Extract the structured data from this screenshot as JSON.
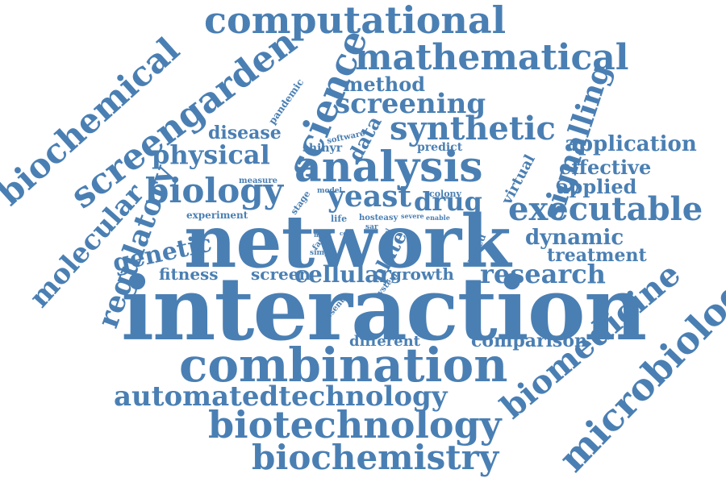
{
  "color": "#4a7fb3",
  "words": {
    "computational": "computational",
    "mathematical": "mathematical",
    "biochemical": "biochemical",
    "screengarden": "screengarden",
    "science": "science",
    "method": "method",
    "screening": "screening",
    "pandemic": "pandemic",
    "synthetic": "synthetic",
    "signalling": "signalling",
    "disease": "disease",
    "data": "data",
    "software": "software",
    "shinyr": "shinyr",
    "predict": "predict",
    "application": "application",
    "physical": "physical",
    "analysis": "analysis",
    "virtual": "virtual",
    "effective": "effective",
    "molecular": "molecular",
    "regulatory": "regulatory",
    "biology": "biology",
    "measure": "measure",
    "model": "model",
    "stage": "stage",
    "yeast": "yeast",
    "drug": "drug",
    "colony": "colony",
    "applied": "applied",
    "executable": "executable",
    "experiment": "experiment",
    "life": "life",
    "host": "host",
    "easy": "easy",
    "severe": "severe",
    "enable": "enable",
    "network": "network",
    "most": "most",
    "code": "code",
    "sar": "sar",
    "tool": "tool",
    "dynamic": "dynamic",
    "genetic": "genetic",
    "fast": "fast",
    "simple": "simple",
    "plate": "plate",
    "based": "based",
    "treatment": "treatment",
    "fitness": "fitness",
    "screen": "screen",
    "cellular": "cellular",
    "growth": "growth",
    "research": "research",
    "system": "system",
    "interaction": "interaction",
    "present": "present",
    "biomedicine": "biomedicine",
    "microbiology": "microbiology",
    "different": "different",
    "comparison": "comparison",
    "combination": "combination",
    "automatedtechnology": "automatedtechnology",
    "biotechnology": "biotechnology",
    "biochemistry": "biochemistry"
  }
}
